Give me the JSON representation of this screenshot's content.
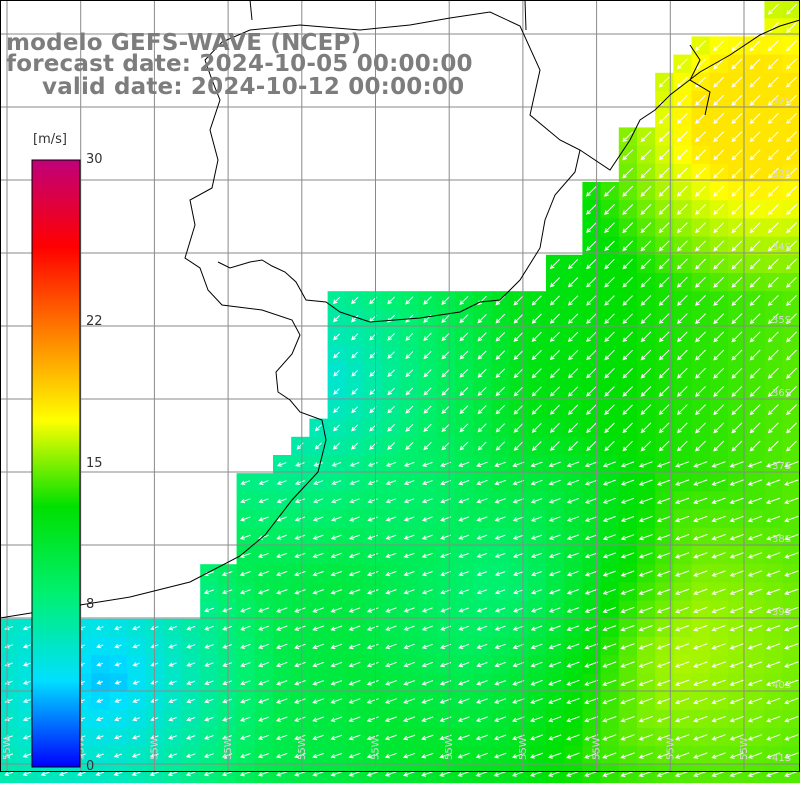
{
  "title": {
    "line1": "modelo GEFS-WAVE (NCEP)",
    "line2": "forecast date: 2024-10-05 00:00:00",
    "line3": "valid date: 2024-10-12 00:00:00"
  },
  "colorbar": {
    "unit": "[m/s]",
    "ticks": [
      {
        "label": "30",
        "value": 30
      },
      {
        "label": "22",
        "value": 22
      },
      {
        "label": "15",
        "value": 15
      },
      {
        "label": "8",
        "value": 8
      },
      {
        "label": "0",
        "value": 0
      }
    ],
    "colors": [
      "#0000ff",
      "#00e0ff",
      "#00f070",
      "#00e000",
      "#ffff00",
      "#ff8000",
      "#ff0000",
      "#c0007a"
    ]
  },
  "lat_labels": [
    "32S",
    "33S",
    "34S",
    "35S",
    "36S",
    "37S",
    "38S",
    "39S",
    "40S",
    "41S"
  ],
  "lon_labels": [
    "55W",
    "55W",
    "55W",
    "55W",
    "55W",
    "55W",
    "55W",
    "55W",
    "55W",
    "55W",
    "55W"
  ],
  "land_color": "#ffffff",
  "grid_color": "#8a8a8a"
}
